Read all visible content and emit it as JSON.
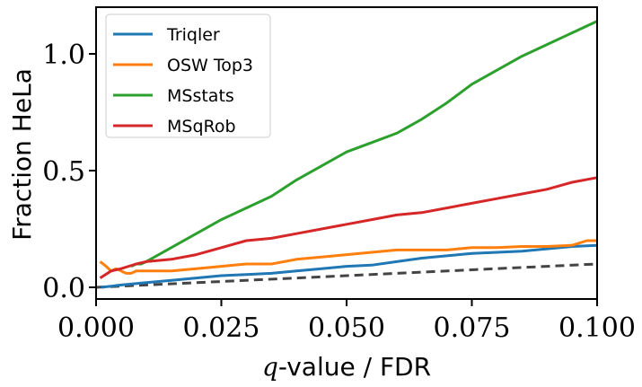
{
  "chart_data": {
    "type": "line",
    "xlabel_prefix": "q",
    "xlabel_suffix": "-value / FDR",
    "ylabel": "Fraction HeLa",
    "xlim": [
      0.0,
      0.1
    ],
    "ylim": [
      -0.05,
      1.2
    ],
    "x_ticks": [
      0.0,
      0.025,
      0.05,
      0.075,
      0.1
    ],
    "x_tick_labels": [
      "0.000",
      "0.025",
      "0.050",
      "0.075",
      "0.100"
    ],
    "y_ticks": [
      0.0,
      0.5,
      1.0
    ],
    "y_tick_labels": [
      "0.0",
      "0.5",
      "1.0"
    ],
    "grid": false,
    "legend_position": "top-left",
    "series": [
      {
        "name": "Triqler",
        "color": "#1f77b4",
        "x": [
          0.001,
          0.005,
          0.01,
          0.015,
          0.02,
          0.025,
          0.03,
          0.035,
          0.04,
          0.045,
          0.05,
          0.055,
          0.06,
          0.065,
          0.07,
          0.075,
          0.08,
          0.085,
          0.09,
          0.095,
          0.1
        ],
        "y": [
          0.0,
          0.01,
          0.02,
          0.03,
          0.04,
          0.05,
          0.055,
          0.06,
          0.07,
          0.08,
          0.09,
          0.095,
          0.11,
          0.125,
          0.135,
          0.145,
          0.15,
          0.155,
          0.165,
          0.175,
          0.18
        ]
      },
      {
        "name": "OSW Top3",
        "color": "#ff7f0e",
        "x": [
          0.0008,
          0.002,
          0.003,
          0.004,
          0.005,
          0.006,
          0.007,
          0.008,
          0.01,
          0.015,
          0.02,
          0.025,
          0.03,
          0.035,
          0.04,
          0.045,
          0.05,
          0.055,
          0.06,
          0.065,
          0.07,
          0.075,
          0.08,
          0.085,
          0.09,
          0.095,
          0.098,
          0.1
        ],
        "y": [
          0.11,
          0.09,
          0.07,
          0.08,
          0.07,
          0.06,
          0.06,
          0.07,
          0.07,
          0.07,
          0.08,
          0.09,
          0.1,
          0.1,
          0.12,
          0.13,
          0.14,
          0.15,
          0.16,
          0.16,
          0.16,
          0.17,
          0.17,
          0.175,
          0.175,
          0.18,
          0.2,
          0.2
        ]
      },
      {
        "name": "MSstats",
        "color": "#2ca02c",
        "x": [
          0.007,
          0.008,
          0.009,
          0.01,
          0.015,
          0.02,
          0.025,
          0.03,
          0.035,
          0.04,
          0.045,
          0.05,
          0.055,
          0.06,
          0.065,
          0.07,
          0.075,
          0.08,
          0.085,
          0.09,
          0.095,
          0.1
        ],
        "y": [
          0.09,
          0.1,
          0.1,
          0.11,
          0.17,
          0.23,
          0.29,
          0.34,
          0.39,
          0.46,
          0.52,
          0.58,
          0.62,
          0.66,
          0.72,
          0.79,
          0.87,
          0.93,
          0.99,
          1.04,
          1.09,
          1.14
        ]
      },
      {
        "name": "MSqRob",
        "color": "#d62728",
        "x": [
          0.0008,
          0.003,
          0.005,
          0.008,
          0.01,
          0.015,
          0.02,
          0.025,
          0.03,
          0.035,
          0.04,
          0.045,
          0.05,
          0.055,
          0.06,
          0.065,
          0.07,
          0.075,
          0.08,
          0.085,
          0.09,
          0.095,
          0.1
        ],
        "y": [
          0.04,
          0.07,
          0.08,
          0.1,
          0.11,
          0.12,
          0.14,
          0.17,
          0.2,
          0.21,
          0.23,
          0.25,
          0.27,
          0.29,
          0.31,
          0.32,
          0.34,
          0.36,
          0.38,
          0.4,
          0.42,
          0.45,
          0.47
        ]
      }
    ],
    "reference_line": {
      "style": "dashed",
      "color": "#444444",
      "x": [
        0.0,
        0.1
      ],
      "y": [
        0.0,
        0.1
      ]
    }
  }
}
